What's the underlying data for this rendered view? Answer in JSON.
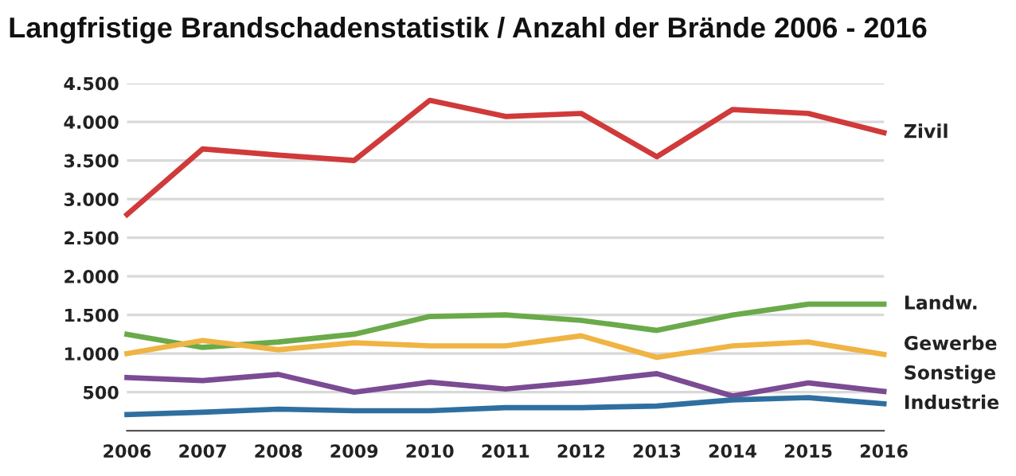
{
  "chart_data": {
    "type": "line",
    "title": "Langfristige Brandschadenstatistik / Anzahl der Brände 2006 - 2016",
    "x": [
      2006,
      2007,
      2008,
      2009,
      2010,
      2011,
      2012,
      2013,
      2014,
      2015,
      2016
    ],
    "series": [
      {
        "name": "Zivil",
        "color": "#d03a3a",
        "values": [
          2800,
          3650,
          3570,
          3500,
          4280,
          4070,
          4110,
          3550,
          4160,
          4110,
          3860
        ]
      },
      {
        "name": "Landw.",
        "color": "#6aaa4a",
        "values": [
          1250,
          1080,
          1150,
          1250,
          1480,
          1500,
          1430,
          1300,
          1500,
          1640,
          1640
        ]
      },
      {
        "name": "Gewerbe",
        "color": "#f0b444",
        "values": [
          1000,
          1170,
          1050,
          1140,
          1100,
          1100,
          1230,
          950,
          1100,
          1150,
          990
        ]
      },
      {
        "name": "Sonstige",
        "color": "#7b4b93",
        "values": [
          690,
          650,
          730,
          500,
          630,
          540,
          630,
          740,
          450,
          620,
          510
        ]
      },
      {
        "name": "Industrie",
        "color": "#2f6fa0",
        "values": [
          210,
          240,
          280,
          260,
          260,
          300,
          300,
          320,
          400,
          430,
          350
        ]
      }
    ],
    "xlim": [
      2006,
      2016
    ],
    "xticks": [
      2006,
      2007,
      2008,
      2009,
      2010,
      2011,
      2012,
      2013,
      2014,
      2015,
      2016
    ],
    "ylim": [
      0,
      4500
    ],
    "yticks": [
      {
        "value": 500,
        "label": "500"
      },
      {
        "value": 1000,
        "label": "1.000"
      },
      {
        "value": 1500,
        "label": "1.500"
      },
      {
        "value": 2000,
        "label": "2.000"
      },
      {
        "value": 2500,
        "label": "2.500"
      },
      {
        "value": 3000,
        "label": "3.000"
      },
      {
        "value": 3500,
        "label": "3.500"
      },
      {
        "value": 4000,
        "label": "4.000"
      },
      {
        "value": 4500,
        "label": "4.500"
      }
    ],
    "grid": "y",
    "legend": false,
    "marker": "none",
    "line_style": "solid"
  }
}
